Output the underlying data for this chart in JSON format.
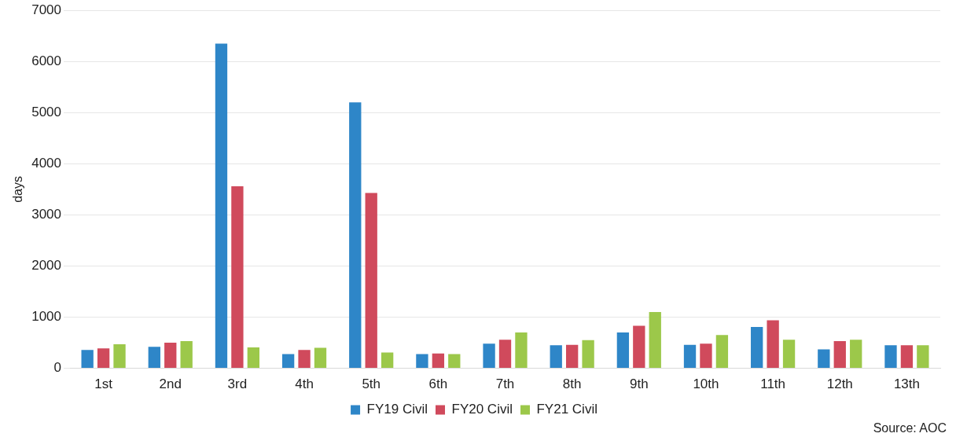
{
  "chart_data": {
    "type": "bar",
    "ylabel": "days",
    "categories": [
      "1st",
      "2nd",
      "3rd",
      "4th",
      "5th",
      "6th",
      "7th",
      "8th",
      "9th",
      "10th",
      "11th",
      "12th",
      "13th"
    ],
    "series": [
      {
        "name": "FY19 Civil",
        "color": "#2e86c8",
        "values": [
          360,
          420,
          6350,
          280,
          5200,
          280,
          480,
          450,
          700,
          460,
          810,
          370,
          450
        ]
      },
      {
        "name": "FY20 Civil",
        "color": "#d04a5c",
        "values": [
          390,
          500,
          3560,
          360,
          3430,
          290,
          560,
          460,
          830,
          480,
          940,
          530,
          450
        ]
      },
      {
        "name": "FY21 Civil",
        "color": "#9cc84a",
        "values": [
          470,
          530,
          410,
          400,
          310,
          280,
          700,
          550,
          1100,
          650,
          560,
          560,
          450
        ]
      }
    ],
    "ylim": [
      0,
      7000
    ],
    "yticks": [
      0,
      1000,
      2000,
      3000,
      4000,
      5000,
      6000,
      7000
    ],
    "grid": "y",
    "legend": "bottom",
    "annotations": [
      "Source: AOC"
    ]
  }
}
